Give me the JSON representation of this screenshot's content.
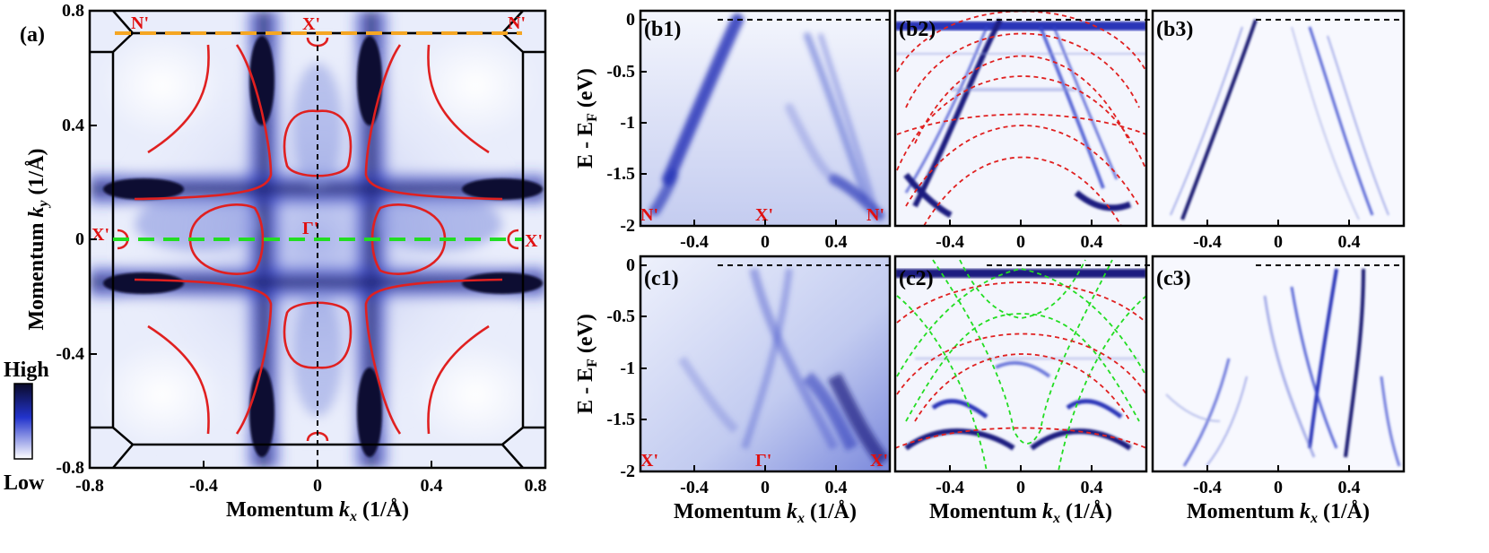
{
  "chart_data": [
    {
      "panel": "(a)",
      "type": "heatmap",
      "xlabel_main": "Momentum ",
      "xlabel_var": "k",
      "xlabel_sub": "x",
      "xlabel_unit": " (1/Å)",
      "ylabel_main": "Momentum ",
      "ylabel_var": "k",
      "ylabel_sub": "y",
      "ylabel_unit": " (1/Å)",
      "xlim": [
        -0.8,
        0.8
      ],
      "ylim": [
        -0.8,
        0.8
      ],
      "xticks": [
        "-0.8",
        "-0.4",
        "0",
        "0.4",
        "0.8"
      ],
      "yticks": [
        "0.8",
        "0.4",
        "0",
        "-0.4",
        "-0.8"
      ],
      "colorbar": {
        "high": "High",
        "low": "Low",
        "colors": [
          "#ffffff",
          "#2233cc",
          "#0a0a28"
        ]
      },
      "points": [
        {
          "label": "N'",
          "x": -0.62,
          "y": 0.72
        },
        {
          "label": "X'",
          "x": -0.02,
          "y": 0.72
        },
        {
          "label": "N'",
          "x": 0.69,
          "y": 0.72
        },
        {
          "label": "X'",
          "x": -0.75,
          "y": 0.0
        },
        {
          "label": "Γ'",
          "x": -0.03,
          "y": 0.03
        },
        {
          "label": "X'",
          "x": 0.75,
          "y": 0.0
        }
      ],
      "cuts": [
        {
          "name": "N'-X'-N'",
          "color": "#f5a623",
          "y": 0.71,
          "x": [
            -0.71,
            0.71
          ]
        },
        {
          "name": "X'-Γ'-X'",
          "color": "#22dd22",
          "y": 0.0,
          "x": [
            -0.71,
            0.71
          ]
        }
      ]
    },
    {
      "panel": "(b1)",
      "type": "heatmap",
      "xlim": [
        -0.7,
        0.7
      ],
      "ylim": [
        -2,
        0.05
      ],
      "xticks": [
        "-0.4",
        "0",
        "0.4"
      ],
      "yticks": [
        "0",
        "-0.5",
        "-1",
        "-1.5",
        "-2"
      ],
      "ylabel_main": "E - E",
      "ylabel_sub": "F",
      "ylabel_unit": " (eV)",
      "points": [
        "N'",
        "X'",
        "N'"
      ]
    },
    {
      "panel": "(b2)",
      "type": "heatmap",
      "xlim": [
        -0.7,
        0.7
      ],
      "ylim": [
        -2,
        0.05
      ],
      "xticks": [
        "-0.4",
        "0",
        "0.4"
      ]
    },
    {
      "panel": "(b3)",
      "type": "heatmap",
      "xlim": [
        -0.7,
        0.7
      ],
      "ylim": [
        -2,
        0.05
      ],
      "xticks": [
        "-0.4",
        "0",
        "0.4"
      ]
    },
    {
      "panel": "(c1)",
      "type": "heatmap",
      "xlim": [
        -0.7,
        0.7
      ],
      "ylim": [
        -2,
        0.05
      ],
      "xticks": [
        "-0.4",
        "0",
        "0.4"
      ],
      "yticks": [
        "0",
        "-0.5",
        "-1",
        "-1.5",
        "-2"
      ],
      "ylabel_main": "E - E",
      "ylabel_sub": "F",
      "ylabel_unit": " (eV)",
      "points": [
        "X'",
        "Γ'",
        "X'"
      ],
      "xlabel_main": "Momentum ",
      "xlabel_var": "k",
      "xlabel_sub": "x",
      "xlabel_unit": " (1/Å)"
    },
    {
      "panel": "(c2)",
      "type": "heatmap",
      "xlim": [
        -0.7,
        0.7
      ],
      "ylim": [
        -2,
        0.05
      ],
      "xticks": [
        "-0.4",
        "0",
        "0.4"
      ],
      "xlabel_main": "Momentum ",
      "xlabel_var": "k",
      "xlabel_sub": "x",
      "xlabel_unit": " (1/Å)"
    },
    {
      "panel": "(c3)",
      "type": "heatmap",
      "xlim": [
        -0.7,
        0.7
      ],
      "ylim": [
        -2,
        0.05
      ],
      "xticks": [
        "-0.4",
        "0",
        "0.4"
      ],
      "xlabel_main": "Momentum ",
      "xlabel_var": "k",
      "xlabel_sub": "x",
      "xlabel_unit": " (1/Å)"
    }
  ],
  "colors": {
    "contour": "#e02020",
    "cut_orange": "#f5a623",
    "cut_green": "#22dd22",
    "intensity_light": "#c8d0f4",
    "intensity_mid": "#3344cc",
    "intensity_dark": "#0a0a30"
  }
}
